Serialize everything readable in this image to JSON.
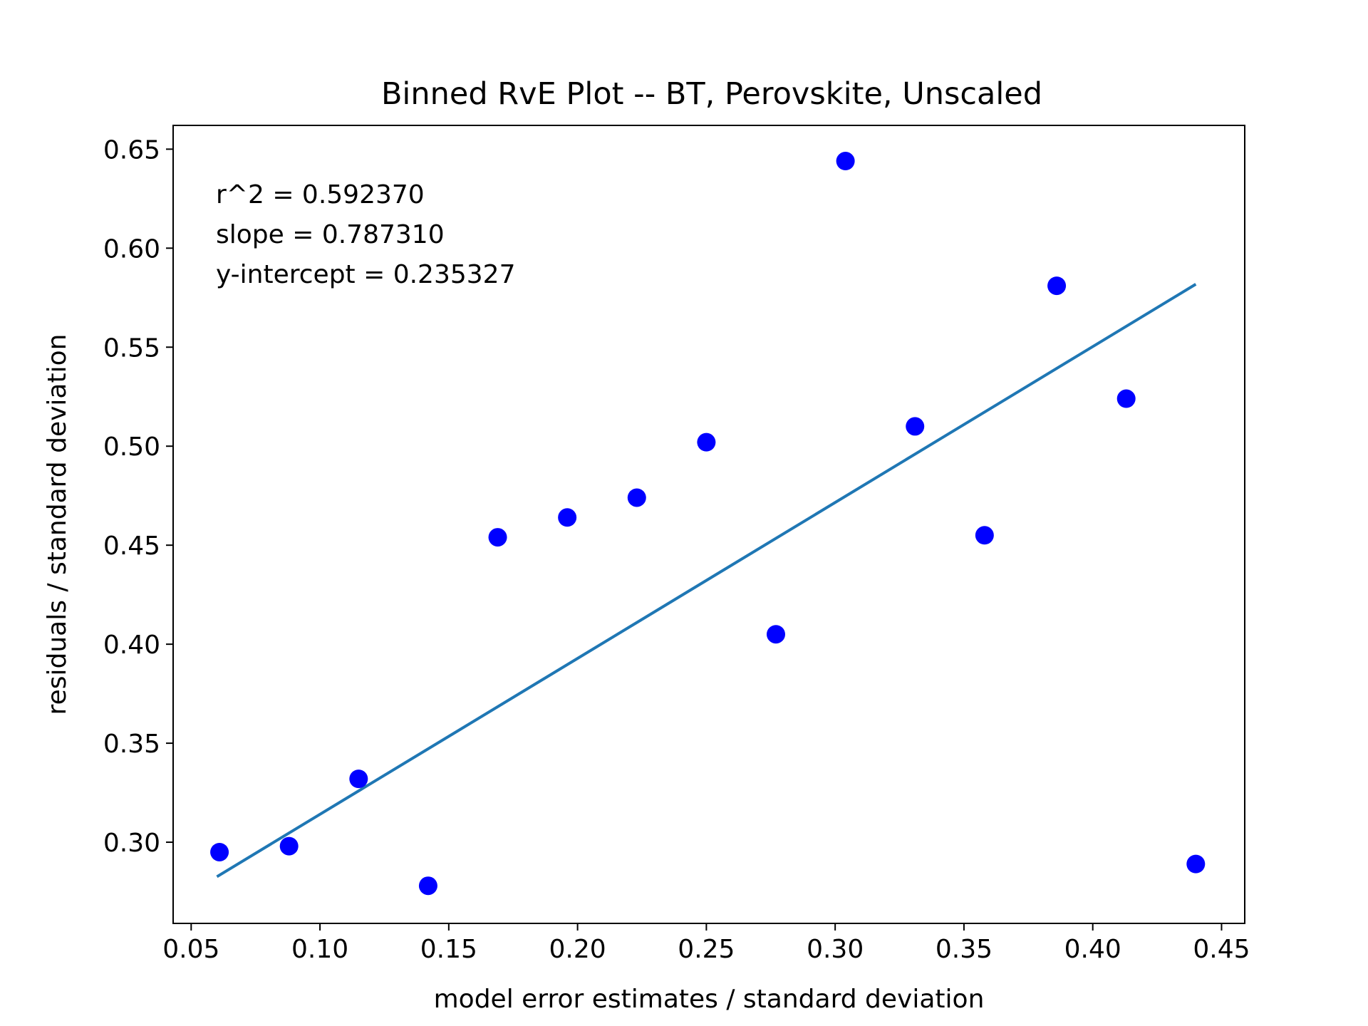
{
  "chart_data": {
    "type": "scatter",
    "title": "Binned RvE Plot -- BT, Perovskite, Unscaled",
    "xlabel": "model error estimates / standard deviation",
    "ylabel": "residuals / standard deviation",
    "xlim": [
      0.043,
      0.459
    ],
    "ylim": [
      0.259,
      0.662
    ],
    "xticks": [
      "0.05",
      "0.10",
      "0.15",
      "0.20",
      "0.25",
      "0.30",
      "0.35",
      "0.40",
      "0.45"
    ],
    "yticks": [
      "0.30",
      "0.35",
      "0.40",
      "0.45",
      "0.50",
      "0.55",
      "0.60",
      "0.65"
    ],
    "grid": false,
    "series": [
      {
        "type": "scatter",
        "color": "#0000ff",
        "x": [
          0.061,
          0.088,
          0.115,
          0.142,
          0.169,
          0.196,
          0.223,
          0.25,
          0.277,
          0.304,
          0.331,
          0.358,
          0.386,
          0.413,
          0.44
        ],
        "y": [
          0.295,
          0.298,
          0.332,
          0.278,
          0.454,
          0.464,
          0.474,
          0.502,
          0.405,
          0.644,
          0.51,
          0.455,
          0.581,
          0.524,
          0.289
        ]
      },
      {
        "type": "line",
        "color": "#1f77b4",
        "x": [
          0.06,
          0.44
        ],
        "y": [
          0.2826,
          0.5818
        ]
      }
    ],
    "annotations": [
      "r^2 = 0.592370",
      "slope = 0.787310",
      "y-intercept = 0.235327"
    ]
  }
}
